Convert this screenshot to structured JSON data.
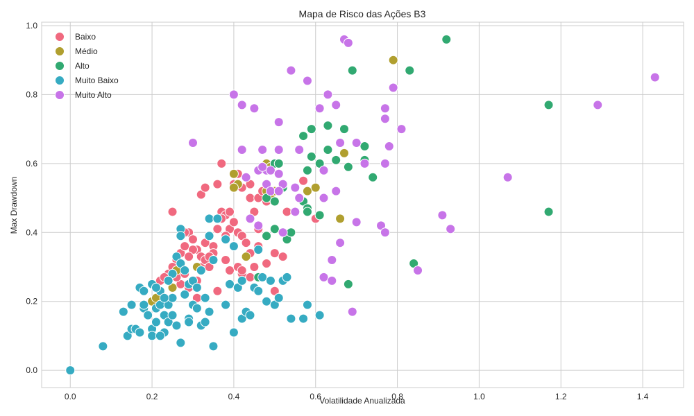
{
  "chart_data": {
    "type": "scatter",
    "title": "Mapa de Risco das Ações B3",
    "xlabel": "Volatilidade Anualizada",
    "ylabel": "Max Drawdown",
    "xlim": [
      -0.07,
      1.5
    ],
    "ylim": [
      -0.05,
      1.01
    ],
    "x_ticks": [
      "0.0",
      "0.2",
      "0.4",
      "0.6",
      "0.8",
      "1.0",
      "1.2",
      "1.4"
    ],
    "y_ticks": [
      "0.0",
      "0.2",
      "0.4",
      "0.6",
      "0.8",
      "1.0"
    ],
    "grid": true,
    "legend_position": "top-left",
    "series": [
      {
        "name": "Baixo",
        "color": "#f0697f",
        "points": [
          [
            0.25,
            0.46
          ],
          [
            0.32,
            0.51
          ],
          [
            0.33,
            0.53
          ],
          [
            0.36,
            0.54
          ],
          [
            0.37,
            0.6
          ],
          [
            0.37,
            0.46
          ],
          [
            0.38,
            0.45
          ],
          [
            0.39,
            0.41
          ],
          [
            0.4,
            0.57
          ],
          [
            0.4,
            0.54
          ],
          [
            0.41,
            0.57
          ],
          [
            0.42,
            0.53
          ],
          [
            0.43,
            0.56
          ],
          [
            0.44,
            0.54
          ],
          [
            0.44,
            0.5
          ],
          [
            0.45,
            0.46
          ],
          [
            0.46,
            0.5
          ],
          [
            0.47,
            0.52
          ],
          [
            0.48,
            0.49
          ],
          [
            0.49,
            0.58
          ],
          [
            0.26,
            0.32
          ],
          [
            0.27,
            0.34
          ],
          [
            0.28,
            0.36
          ],
          [
            0.29,
            0.4
          ],
          [
            0.3,
            0.38
          ],
          [
            0.31,
            0.35
          ],
          [
            0.32,
            0.33
          ],
          [
            0.33,
            0.37
          ],
          [
            0.34,
            0.39
          ],
          [
            0.35,
            0.36
          ],
          [
            0.36,
            0.41
          ],
          [
            0.37,
            0.44
          ],
          [
            0.38,
            0.39
          ],
          [
            0.39,
            0.46
          ],
          [
            0.4,
            0.43
          ],
          [
            0.41,
            0.4
          ],
          [
            0.42,
            0.39
          ],
          [
            0.43,
            0.37
          ],
          [
            0.44,
            0.34
          ],
          [
            0.45,
            0.3
          ],
          [
            0.46,
            0.36
          ],
          [
            0.47,
            0.27
          ],
          [
            0.48,
            0.31
          ],
          [
            0.5,
            0.34
          ],
          [
            0.52,
            0.33
          ],
          [
            0.53,
            0.46
          ],
          [
            0.55,
            0.46
          ],
          [
            0.57,
            0.55
          ],
          [
            0.6,
            0.44
          ],
          [
            0.61,
            0.45
          ],
          [
            0.62,
            0.27
          ],
          [
            0.5,
            0.23
          ],
          [
            0.24,
            0.28
          ],
          [
            0.25,
            0.3
          ],
          [
            0.27,
            0.25
          ],
          [
            0.28,
            0.28
          ],
          [
            0.29,
            0.24
          ],
          [
            0.3,
            0.35
          ],
          [
            0.31,
            0.21
          ],
          [
            0.32,
            0.3
          ],
          [
            0.33,
            0.32
          ],
          [
            0.34,
            0.3
          ],
          [
            0.35,
            0.34
          ],
          [
            0.36,
            0.23
          ],
          [
            0.38,
            0.32
          ],
          [
            0.39,
            0.29
          ],
          [
            0.4,
            0.36
          ],
          [
            0.41,
            0.3
          ],
          [
            0.42,
            0.28
          ],
          [
            0.44,
            0.27
          ],
          [
            0.46,
            0.41
          ],
          [
            0.31,
            0.26
          ],
          [
            0.29,
            0.33
          ],
          [
            0.28,
            0.4
          ],
          [
            0.26,
            0.27
          ],
          [
            0.22,
            0.26
          ],
          [
            0.23,
            0.27
          ],
          [
            0.21,
            0.18
          ],
          [
            0.34,
            0.33
          ],
          [
            0.42,
            0.29
          ]
        ]
      },
      {
        "name": "Médio",
        "color": "#b09f2f",
        "points": [
          [
            0.4,
            0.57
          ],
          [
            0.41,
            0.54
          ],
          [
            0.4,
            0.53
          ],
          [
            0.43,
            0.56
          ],
          [
            0.48,
            0.6
          ],
          [
            0.49,
            0.59
          ],
          [
            0.48,
            0.52
          ],
          [
            0.49,
            0.5
          ],
          [
            0.5,
            0.52
          ],
          [
            0.58,
            0.52
          ],
          [
            0.6,
            0.53
          ],
          [
            0.67,
            0.63
          ],
          [
            0.66,
            0.44
          ],
          [
            0.79,
            0.9
          ],
          [
            0.43,
            0.33
          ],
          [
            0.31,
            0.3
          ],
          [
            0.27,
            0.3
          ],
          [
            0.25,
            0.24
          ],
          [
            0.2,
            0.2
          ],
          [
            0.21,
            0.21
          ],
          [
            0.26,
            0.29
          ]
        ]
      },
      {
        "name": "Alto",
        "color": "#31a971",
        "points": [
          [
            0.92,
            0.96
          ],
          [
            0.69,
            0.87
          ],
          [
            0.83,
            0.87
          ],
          [
            0.79,
            0.82
          ],
          [
            0.63,
            0.71
          ],
          [
            0.59,
            0.7
          ],
          [
            0.67,
            0.7
          ],
          [
            0.57,
            0.68
          ],
          [
            0.72,
            0.65
          ],
          [
            0.63,
            0.64
          ],
          [
            0.65,
            0.61
          ],
          [
            0.72,
            0.61
          ],
          [
            0.59,
            0.62
          ],
          [
            0.61,
            0.6
          ],
          [
            0.68,
            0.59
          ],
          [
            0.58,
            0.58
          ],
          [
            0.74,
            0.56
          ],
          [
            0.5,
            0.6
          ],
          [
            0.51,
            0.6
          ],
          [
            0.52,
            0.53
          ],
          [
            0.48,
            0.5
          ],
          [
            0.5,
            0.49
          ],
          [
            0.56,
            0.5
          ],
          [
            0.57,
            0.49
          ],
          [
            0.58,
            0.47
          ],
          [
            0.58,
            0.46
          ],
          [
            0.61,
            0.45
          ],
          [
            0.5,
            0.41
          ],
          [
            0.52,
            0.4
          ],
          [
            0.53,
            0.38
          ],
          [
            0.54,
            0.4
          ],
          [
            0.48,
            0.39
          ],
          [
            1.17,
            0.77
          ],
          [
            1.17,
            0.46
          ],
          [
            0.84,
            0.31
          ],
          [
            0.68,
            0.25
          ],
          [
            0.46,
            0.27
          ]
        ]
      },
      {
        "name": "Muito Baixo",
        "color": "#36abc2",
        "points": [
          [
            0.0,
            0.0
          ],
          [
            0.08,
            0.07
          ],
          [
            0.13,
            0.17
          ],
          [
            0.14,
            0.1
          ],
          [
            0.15,
            0.12
          ],
          [
            0.15,
            0.19
          ],
          [
            0.16,
            0.12
          ],
          [
            0.17,
            0.11
          ],
          [
            0.17,
            0.24
          ],
          [
            0.18,
            0.23
          ],
          [
            0.18,
            0.18
          ],
          [
            0.19,
            0.16
          ],
          [
            0.2,
            0.25
          ],
          [
            0.2,
            0.12
          ],
          [
            0.2,
            0.1
          ],
          [
            0.21,
            0.18
          ],
          [
            0.21,
            0.14
          ],
          [
            0.22,
            0.19
          ],
          [
            0.22,
            0.23
          ],
          [
            0.23,
            0.16
          ],
          [
            0.23,
            0.11
          ],
          [
            0.24,
            0.14
          ],
          [
            0.24,
            0.19
          ],
          [
            0.25,
            0.21
          ],
          [
            0.25,
            0.28
          ],
          [
            0.25,
            0.16
          ],
          [
            0.26,
            0.33
          ],
          [
            0.27,
            0.41
          ],
          [
            0.27,
            0.39
          ],
          [
            0.27,
            0.31
          ],
          [
            0.28,
            0.29
          ],
          [
            0.28,
            0.22
          ],
          [
            0.29,
            0.25
          ],
          [
            0.29,
            0.15
          ],
          [
            0.3,
            0.26
          ],
          [
            0.3,
            0.19
          ],
          [
            0.31,
            0.24
          ],
          [
            0.32,
            0.29
          ],
          [
            0.32,
            0.13
          ],
          [
            0.33,
            0.21
          ],
          [
            0.34,
            0.44
          ],
          [
            0.34,
            0.39
          ],
          [
            0.34,
            0.17
          ],
          [
            0.35,
            0.32
          ],
          [
            0.35,
            0.07
          ],
          [
            0.36,
            0.44
          ],
          [
            0.38,
            0.38
          ],
          [
            0.38,
            0.19
          ],
          [
            0.39,
            0.25
          ],
          [
            0.4,
            0.36
          ],
          [
            0.4,
            0.11
          ],
          [
            0.41,
            0.24
          ],
          [
            0.42,
            0.26
          ],
          [
            0.42,
            0.15
          ],
          [
            0.43,
            0.17
          ],
          [
            0.44,
            0.16
          ],
          [
            0.45,
            0.24
          ],
          [
            0.46,
            0.23
          ],
          [
            0.46,
            0.35
          ],
          [
            0.47,
            0.27
          ],
          [
            0.48,
            0.2
          ],
          [
            0.49,
            0.26
          ],
          [
            0.5,
            0.19
          ],
          [
            0.51,
            0.21
          ],
          [
            0.52,
            0.26
          ],
          [
            0.53,
            0.27
          ],
          [
            0.54,
            0.15
          ],
          [
            0.57,
            0.15
          ],
          [
            0.58,
            0.19
          ],
          [
            0.61,
            0.16
          ],
          [
            0.27,
            0.08
          ],
          [
            0.29,
            0.14
          ],
          [
            0.26,
            0.13
          ],
          [
            0.22,
            0.1
          ],
          [
            0.18,
            0.19
          ],
          [
            0.24,
            0.26
          ],
          [
            0.31,
            0.18
          ],
          [
            0.33,
            0.14
          ],
          [
            0.21,
            0.24
          ],
          [
            0.23,
            0.21
          ]
        ]
      },
      {
        "name": "Muito Alto",
        "color": "#c774e8",
        "points": [
          [
            0.67,
            0.96
          ],
          [
            0.68,
            0.95
          ],
          [
            0.54,
            0.87
          ],
          [
            0.58,
            0.84
          ],
          [
            0.4,
            0.8
          ],
          [
            0.63,
            0.8
          ],
          [
            0.79,
            0.82
          ],
          [
            0.42,
            0.77
          ],
          [
            0.45,
            0.76
          ],
          [
            0.61,
            0.76
          ],
          [
            0.65,
            0.77
          ],
          [
            0.77,
            0.76
          ],
          [
            0.77,
            0.73
          ],
          [
            0.51,
            0.72
          ],
          [
            0.81,
            0.7
          ],
          [
            1.43,
            0.85
          ],
          [
            1.29,
            0.77
          ],
          [
            0.3,
            0.66
          ],
          [
            0.7,
            0.66
          ],
          [
            0.42,
            0.64
          ],
          [
            0.47,
            0.64
          ],
          [
            0.51,
            0.64
          ],
          [
            0.56,
            0.64
          ],
          [
            0.66,
            0.66
          ],
          [
            0.78,
            0.65
          ],
          [
            0.72,
            0.6
          ],
          [
            0.77,
            0.6
          ],
          [
            0.62,
            0.58
          ],
          [
            0.46,
            0.58
          ],
          [
            0.48,
            0.58
          ],
          [
            0.49,
            0.58
          ],
          [
            0.51,
            0.57
          ],
          [
            0.48,
            0.54
          ],
          [
            0.52,
            0.54
          ],
          [
            0.49,
            0.52
          ],
          [
            0.51,
            0.52
          ],
          [
            0.55,
            0.53
          ],
          [
            0.43,
            0.56
          ],
          [
            0.47,
            0.59
          ],
          [
            0.56,
            0.5
          ],
          [
            0.62,
            0.5
          ],
          [
            0.65,
            0.52
          ],
          [
            0.46,
            0.42
          ],
          [
            0.52,
            0.4
          ],
          [
            0.7,
            0.43
          ],
          [
            0.76,
            0.42
          ],
          [
            0.77,
            0.4
          ],
          [
            0.66,
            0.37
          ],
          [
            0.64,
            0.32
          ],
          [
            0.62,
            0.27
          ],
          [
            0.64,
            0.26
          ],
          [
            0.69,
            0.17
          ],
          [
            0.85,
            0.29
          ],
          [
            1.07,
            0.56
          ],
          [
            0.91,
            0.45
          ],
          [
            0.93,
            0.41
          ],
          [
            0.55,
            0.46
          ],
          [
            0.44,
            0.44
          ]
        ]
      }
    ]
  }
}
